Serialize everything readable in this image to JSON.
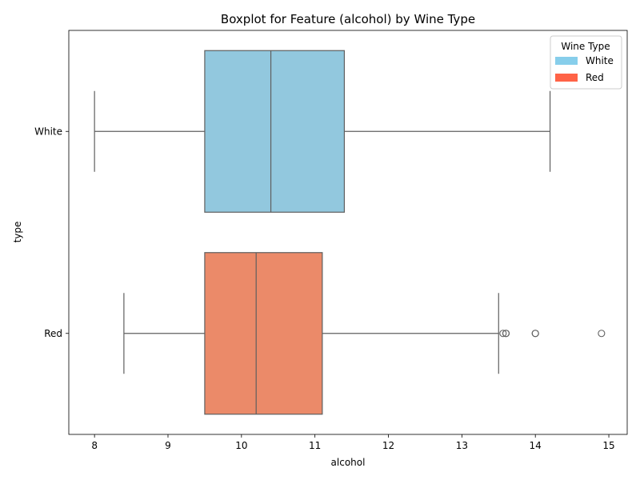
{
  "chart_data": {
    "type": "boxplot",
    "orientation": "horizontal",
    "title": "Boxplot for Feature (alcohol) by Wine Type",
    "xlabel": "alcohol",
    "ylabel": "type",
    "xlim": [
      7.65,
      15.25
    ],
    "x_ticks": [
      8,
      9,
      10,
      11,
      12,
      13,
      14,
      15
    ],
    "grid": false,
    "legend": {
      "title": "Wine Type",
      "placement": "top-right",
      "entries": [
        "White",
        "Red"
      ]
    },
    "categories": [
      "White",
      "Red"
    ],
    "series": [
      {
        "name": "White",
        "color": "#87CEEB",
        "box_fill": "#92C8DE",
        "whisker_low": 8.0,
        "q1": 9.5,
        "median": 10.4,
        "q3": 11.4,
        "whisker_high": 14.2,
        "outliers": []
      },
      {
        "name": "Red",
        "color": "#FF6347",
        "box_fill": "#EB8A69",
        "whisker_low": 8.4,
        "q1": 9.5,
        "median": 10.2,
        "q3": 11.1,
        "whisker_high": 13.5,
        "outliers": [
          13.56,
          13.6,
          13.6,
          14.0,
          14.0,
          14.9
        ]
      }
    ]
  }
}
